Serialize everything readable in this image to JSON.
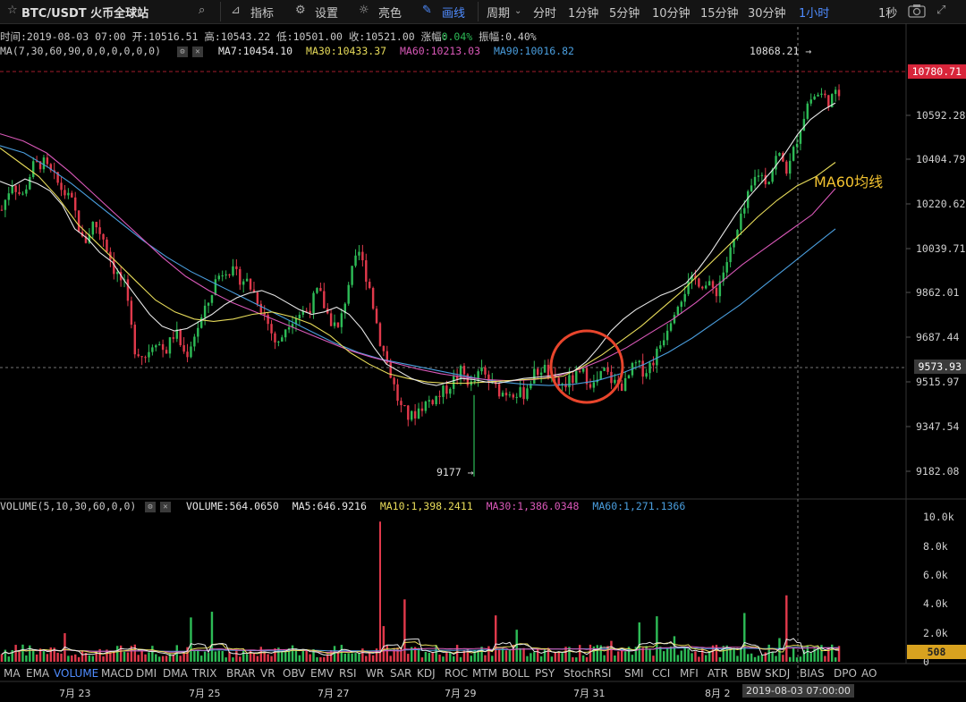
{
  "toolbar": {
    "pair": "BTC/USDT 火币全球站",
    "indicators_label": "指标",
    "settings_label": "设置",
    "theme_label": "亮色",
    "draw_label": "画线",
    "period_label": "周期",
    "intervals": [
      "分时",
      "1分钟",
      "5分钟",
      "10分钟",
      "15分钟",
      "30分钟",
      "1小时"
    ],
    "active_interval": "1小时",
    "right_label": "1秒"
  },
  "ohlc": {
    "time": "时间:2019-08-03 07:00",
    "open": "开:10516.51",
    "high": "高:10543.22",
    "low": "低:10501.00",
    "close": "收:10521.00",
    "change_label": "涨幅:",
    "change_value": "0.04%",
    "amp": "振幅:0.40%"
  },
  "ma_line": {
    "name": "MA(7,30,60,90,0,0,0,0,0,0)",
    "ma7": "MA7:10454.10",
    "ma30": "MA30:10433.37",
    "ma60": "MA60:10213.03",
    "ma90": "MA90:10016.82"
  },
  "vol_line": {
    "name": "VOLUME(5,10,30,60,0,0)",
    "volume": "VOLUME:564.0650",
    "ma5": "MA5:646.9216",
    "ma10": "MA10:1,398.2411",
    "ma30": "MA30:1,386.0348",
    "ma60": "MA60:1,271.1366"
  },
  "colors": {
    "up": "#2dbb56",
    "down": "#e0394b",
    "ma7": "#e8e8e8",
    "ma30": "#e8dc5a",
    "ma60": "#d958b8",
    "ma90": "#4a9ede",
    "circle": "#e8452c",
    "annotation": "#f2c230"
  },
  "chart_data": {
    "type": "candlestick",
    "price_ticks": [
      "10592.28",
      "10404.79",
      "10220.62",
      "10039.71",
      "9862.01",
      "9687.44",
      "9515.97",
      "9347.54",
      "9182.08"
    ],
    "volume_ticks": [
      "10.0k",
      "8.0k",
      "6.0k",
      "4.0k",
      "2.0k",
      "0"
    ],
    "x_labels": [
      "7月 23",
      "7月 25",
      "7月 27",
      "7月 29",
      "7月 31",
      "8月 2"
    ],
    "last_price": "10780.71",
    "crosshair_price": "9573.93",
    "crosshair_time": "2019-08-03 07:00:00",
    "last_volume": "508",
    "high_marker": "10868.21",
    "low_marker": "9177",
    "annotation": "MA60均线",
    "ylim": [
      9120,
      10950
    ],
    "vol_ylim": [
      0,
      10400
    ],
    "close_path": [
      10300,
      10420,
      10350,
      10480,
      10500,
      10440,
      10380,
      10320,
      10150,
      10250,
      10180,
      10050,
      9980,
      9720,
      9680,
      9760,
      9700,
      9790,
      9680,
      9790,
      9880,
      10010,
      10060,
      10020,
      10000,
      9930,
      9830,
      9720,
      9830,
      9860,
      9880,
      9960,
      9850,
      9790,
      10000,
      10120,
      9980,
      9760,
      9620,
      9470,
      9420,
      9470,
      9500,
      9520,
      9570,
      9620,
      9560,
      9620,
      9560,
      9530,
      9540,
      9520,
      9600,
      9640,
      9570,
      9560,
      9590,
      9610,
      9560,
      9620,
      9570,
      9560,
      9650,
      9620,
      9680,
      9790,
      9900,
      9970,
      10010,
      9980,
      9960,
      10080,
      10200,
      10340,
      10460,
      10420,
      10540,
      10460,
      10620,
      10760,
      10790,
      10760,
      10790
    ],
    "ma7": [
      10420,
      10400,
      10430,
      10410,
      10380,
      10320,
      10220,
      10180,
      10120,
      10080,
      10000,
      9930,
      9860,
      9810,
      9790,
      9800,
      9830,
      9860,
      9900,
      9930,
      9950,
      9960,
      9940,
      9910,
      9880,
      9860,
      9870,
      9890,
      9860,
      9800,
      9720,
      9650,
      9620,
      9590,
      9570,
      9560,
      9575,
      9590,
      9585,
      9575,
      9570,
      9580,
      9590,
      9595,
      9600,
      9610,
      9620,
      9660,
      9720,
      9790,
      9840,
      9880,
      9910,
      9940,
      9960,
      9990,
      10050,
      10120,
      10200,
      10280,
      10350,
      10410,
      10470,
      10540,
      10620,
      10680,
      10720,
      10750
    ],
    "ma30": [
      10560,
      10500,
      10440,
      10350,
      10240,
      10160,
      10080,
      10000,
      9920,
      9870,
      9840,
      9830,
      9840,
      9860,
      9870,
      9850,
      9820,
      9770,
      9700,
      9650,
      9610,
      9590,
      9575,
      9570,
      9570,
      9575,
      9580,
      9585,
      9590,
      9600,
      9640,
      9690,
      9750,
      9810,
      9880,
      9950,
      10030,
      10110,
      10190,
      10270,
      10340,
      10400,
      10440,
      10500
    ],
    "ma60": [
      10620,
      10590,
      10540,
      10460,
      10370,
      10280,
      10190,
      10100,
      10020,
      9960,
      9910,
      9870,
      9830,
      9790,
      9750,
      9710,
      9680,
      9655,
      9630,
      9610,
      9595,
      9585,
      9580,
      9585,
      9600,
      9630,
      9670,
      9720,
      9780,
      9840,
      9910,
      9990,
      10070,
      10140,
      10210,
      10280,
      10390
    ],
    "ma90": [
      10570,
      10540,
      10480,
      10410,
      10330,
      10250,
      10170,
      10100,
      10040,
      9990,
      9940,
      9890,
      9840,
      9790,
      9740,
      9700,
      9670,
      9650,
      9630,
      9610,
      9590,
      9575,
      9565,
      9560,
      9565,
      9580,
      9610,
      9650,
      9700,
      9760,
      9830,
      9900,
      9980,
      10060,
      10140,
      10220
    ]
  }
}
